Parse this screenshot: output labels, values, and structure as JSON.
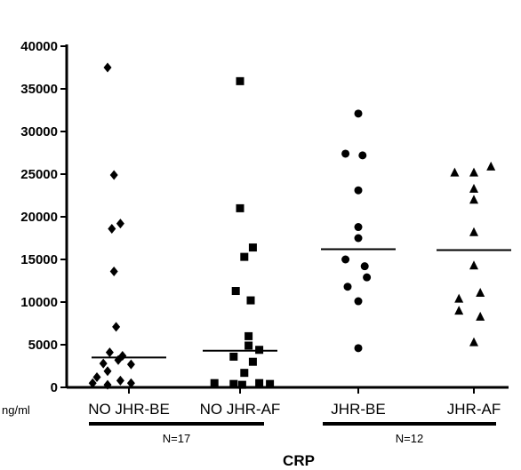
{
  "chart_data": {
    "type": "scatter",
    "title": "CRP",
    "unit_label": "ng/ml",
    "ylim": [
      0,
      40000
    ],
    "yticks": [
      0,
      5000,
      10000,
      15000,
      20000,
      25000,
      30000,
      35000,
      40000
    ],
    "ytick_labels": [
      "0",
      "5000",
      "10000",
      "15000",
      "20000",
      "25000",
      "30000",
      "35000",
      "40000"
    ],
    "categories": [
      "NO JHR-BE",
      "NO JHR-AF",
      "JHR-BE",
      "JHR-AF"
    ],
    "series": [
      {
        "category": "NO JHR-BE",
        "marker": "diamond",
        "points": [
          [
            -0.5,
            37500
          ],
          [
            -0.35,
            24900
          ],
          [
            -0.4,
            18600
          ],
          [
            -0.2,
            19200
          ],
          [
            -0.35,
            13600
          ],
          [
            -0.3,
            7100
          ],
          [
            -0.45,
            4100
          ],
          [
            -0.15,
            3700
          ],
          [
            -0.6,
            2800
          ],
          [
            -0.25,
            3200
          ],
          [
            0.05,
            2700
          ],
          [
            -0.5,
            1900
          ],
          [
            -0.75,
            1200
          ],
          [
            -0.2,
            800
          ],
          [
            0.05,
            500
          ],
          [
            -0.85,
            500
          ],
          [
            -0.5,
            300
          ]
        ],
        "median": 3500
      },
      {
        "category": "NO JHR-AF",
        "marker": "square",
        "points": [
          [
            0.0,
            35900
          ],
          [
            0.0,
            21000
          ],
          [
            0.3,
            16400
          ],
          [
            0.1,
            15300
          ],
          [
            -0.1,
            11300
          ],
          [
            0.25,
            10200
          ],
          [
            0.2,
            6000
          ],
          [
            0.2,
            4900
          ],
          [
            0.45,
            4400
          ],
          [
            -0.15,
            3600
          ],
          [
            0.3,
            3000
          ],
          [
            0.1,
            1700
          ],
          [
            0.45,
            500
          ],
          [
            -0.6,
            500
          ],
          [
            -0.15,
            400
          ],
          [
            0.05,
            300
          ],
          [
            0.7,
            400
          ]
        ],
        "median": 4300
      },
      {
        "category": "JHR-BE",
        "marker": "circle",
        "points": [
          [
            0.0,
            32100
          ],
          [
            -0.3,
            27400
          ],
          [
            0.1,
            27200
          ],
          [
            0.0,
            23100
          ],
          [
            0.0,
            18800
          ],
          [
            0.0,
            17500
          ],
          [
            -0.3,
            15000
          ],
          [
            0.15,
            14200
          ],
          [
            0.2,
            12900
          ],
          [
            -0.25,
            11800
          ],
          [
            0.0,
            10100
          ],
          [
            0.0,
            4600
          ]
        ],
        "median": 16200
      },
      {
        "category": "JHR-AF",
        "marker": "triangle",
        "points": [
          [
            -0.45,
            25200
          ],
          [
            0.4,
            25900
          ],
          [
            0.0,
            25200
          ],
          [
            0.0,
            23300
          ],
          [
            0.0,
            18200
          ],
          [
            0.0,
            14300
          ],
          [
            0.15,
            11100
          ],
          [
            -0.35,
            10400
          ],
          [
            -0.35,
            9000
          ],
          [
            0.15,
            8300
          ],
          [
            0.0,
            5300
          ],
          [
            0.0,
            22000
          ]
        ],
        "median": 16100
      }
    ],
    "groups": [
      {
        "label": "N=17",
        "categories": [
          "NO JHR-BE",
          "NO JHR-AF"
        ]
      },
      {
        "label": "N=12",
        "categories": [
          "JHR-BE",
          "JHR-AF"
        ]
      }
    ],
    "grid": false,
    "legend": "none"
  }
}
